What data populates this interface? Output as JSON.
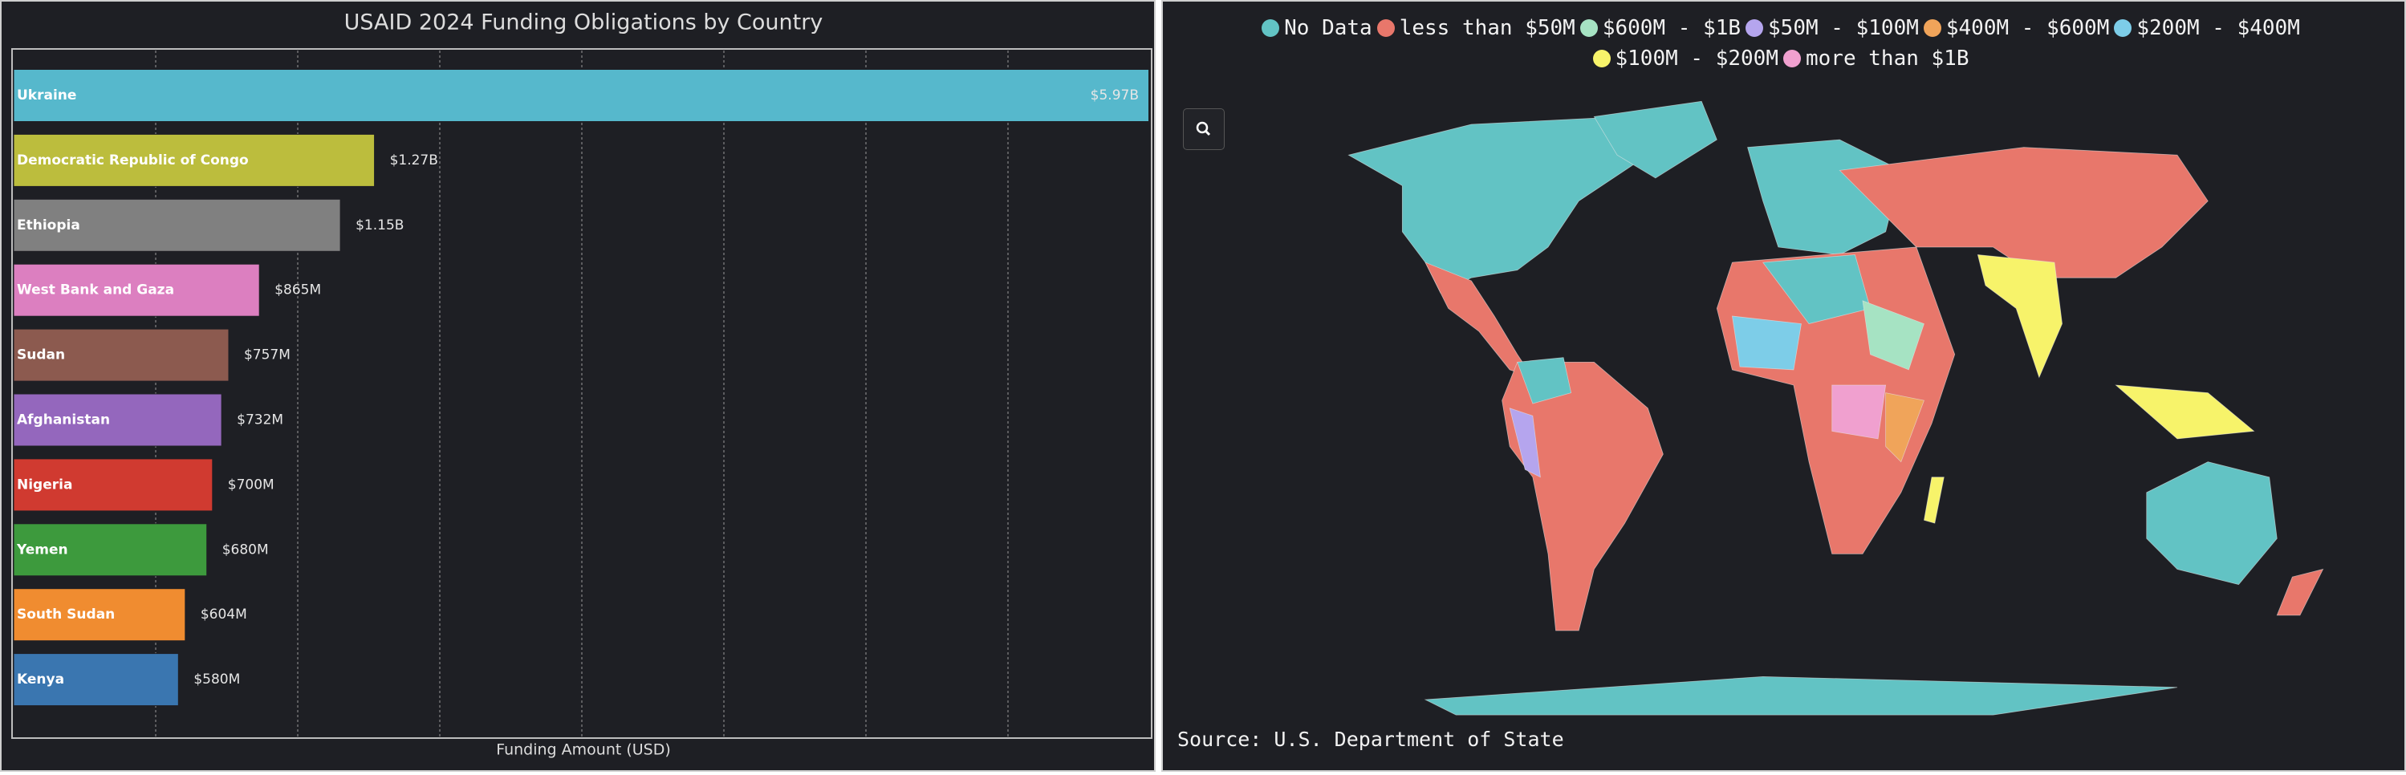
{
  "chart_data": {
    "type": "bar",
    "orientation": "horizontal",
    "title": "USAID 2024 Funding Obligations by Country",
    "xlabel": "Funding Amount (USD)",
    "categories": [
      "Ukraine",
      "Democratic Republic of Congo",
      "Ethiopia",
      "West Bank and Gaza",
      "Sudan",
      "Afghanistan",
      "Nigeria",
      "Yemen",
      "South Sudan",
      "Kenya"
    ],
    "values": [
      5970000000,
      1270000000,
      1150000000,
      865000000,
      757000000,
      732000000,
      700000000,
      680000000,
      604000000,
      580000000
    ],
    "value_labels": [
      "$5.97B",
      "$1.27B",
      "$1.15B",
      "$865M",
      "$757M",
      "$732M",
      "$700M",
      "$680M",
      "$604M",
      "$580M"
    ],
    "colors": [
      "#56b8cc",
      "#bcbd3d",
      "#808080",
      "#dc7fc0",
      "#8c5a4f",
      "#9467bd",
      "#d03a30",
      "#3d9a3d",
      "#f08c30",
      "#3a76b0"
    ],
    "xlim": [
      0,
      4000000000
    ],
    "xgrid": [
      500000000,
      1000000000,
      1500000000,
      2000000000,
      2500000000,
      3000000000,
      3500000000
    ],
    "grid": true
  },
  "map": {
    "legend": [
      {
        "label": "No Data",
        "color": "#62c3c4"
      },
      {
        "label": "less than $50M",
        "color": "#e8776b"
      },
      {
        "label": "$600M - $1B",
        "color": "#a6e3c3"
      },
      {
        "label": "$50M - $100M",
        "color": "#b5a5ee"
      },
      {
        "label": "$400M - $600M",
        "color": "#f0a45a"
      },
      {
        "label": "$200M - $400M",
        "color": "#7dcde8"
      },
      {
        "label": "$100M - $200M",
        "color": "#f7f36a"
      },
      {
        "label": "more than $1B",
        "color": "#f0a0cf"
      }
    ],
    "source": "Source: U.S. Department of State"
  }
}
